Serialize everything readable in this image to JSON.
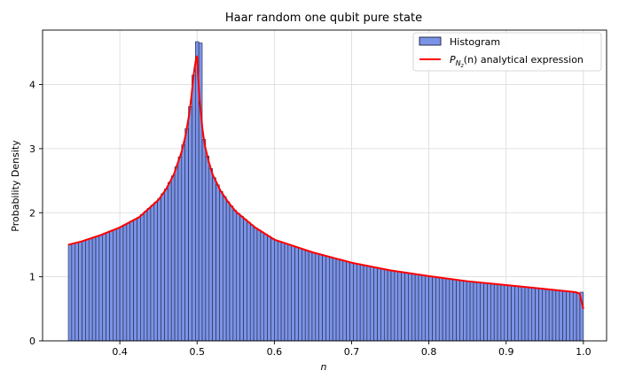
{
  "chart_data": {
    "type": "bar",
    "title": "Haar random one qubit pure state",
    "xlabel": "n",
    "ylabel": "Probability Density",
    "xlim": [
      0.3,
      1.03
    ],
    "ylim": [
      0,
      4.85
    ],
    "xticks": [
      "0.4",
      "0.5",
      "0.6",
      "0.7",
      "0.8",
      "0.9",
      "1.0"
    ],
    "yticks": [
      "0",
      "1",
      "2",
      "3",
      "4"
    ],
    "grid": true,
    "legend": {
      "placement": "top-right",
      "entries": [
        {
          "label": "Histogram",
          "kind": "bar"
        },
        {
          "label_main": "P",
          "label_sub": "N",
          "label_subsub": "z",
          "label_rest": "(n) analytical expression",
          "kind": "line"
        }
      ]
    },
    "colors": {
      "histogram_fill": "#7b93e6",
      "histogram_edge": "#1a1f3a",
      "curve": "#ff0000",
      "grid": "#d9d9d9"
    },
    "histogram": {
      "bin_start": 0.3333,
      "bin_end": 1.0,
      "bins": 150,
      "name": "Histogram"
    },
    "curve": {
      "name": "P_{N_z}(n) analytical expression",
      "x": [
        0.3333,
        0.35,
        0.375,
        0.4,
        0.425,
        0.45,
        0.46,
        0.47,
        0.48,
        0.485,
        0.49,
        0.493,
        0.495,
        0.497,
        0.499,
        0.5,
        0.501,
        0.503,
        0.505,
        0.507,
        0.51,
        0.515,
        0.52,
        0.53,
        0.54,
        0.55,
        0.575,
        0.6,
        0.65,
        0.7,
        0.75,
        0.8,
        0.85,
        0.9,
        0.95,
        0.99,
        0.995,
        1.0
      ],
      "y": [
        1.5,
        1.55,
        1.65,
        1.77,
        1.93,
        2.2,
        2.37,
        2.6,
        2.95,
        3.2,
        3.55,
        3.85,
        4.1,
        4.28,
        4.42,
        4.44,
        4.2,
        3.8,
        3.55,
        3.3,
        3.05,
        2.8,
        2.6,
        2.35,
        2.17,
        2.02,
        1.77,
        1.58,
        1.38,
        1.22,
        1.1,
        1.01,
        0.93,
        0.87,
        0.81,
        0.76,
        0.74,
        0.5
      ]
    },
    "peak_bars": [
      {
        "x": 0.4983,
        "value": 4.67
      },
      {
        "x": 0.5028,
        "value": 4.65
      }
    ]
  }
}
